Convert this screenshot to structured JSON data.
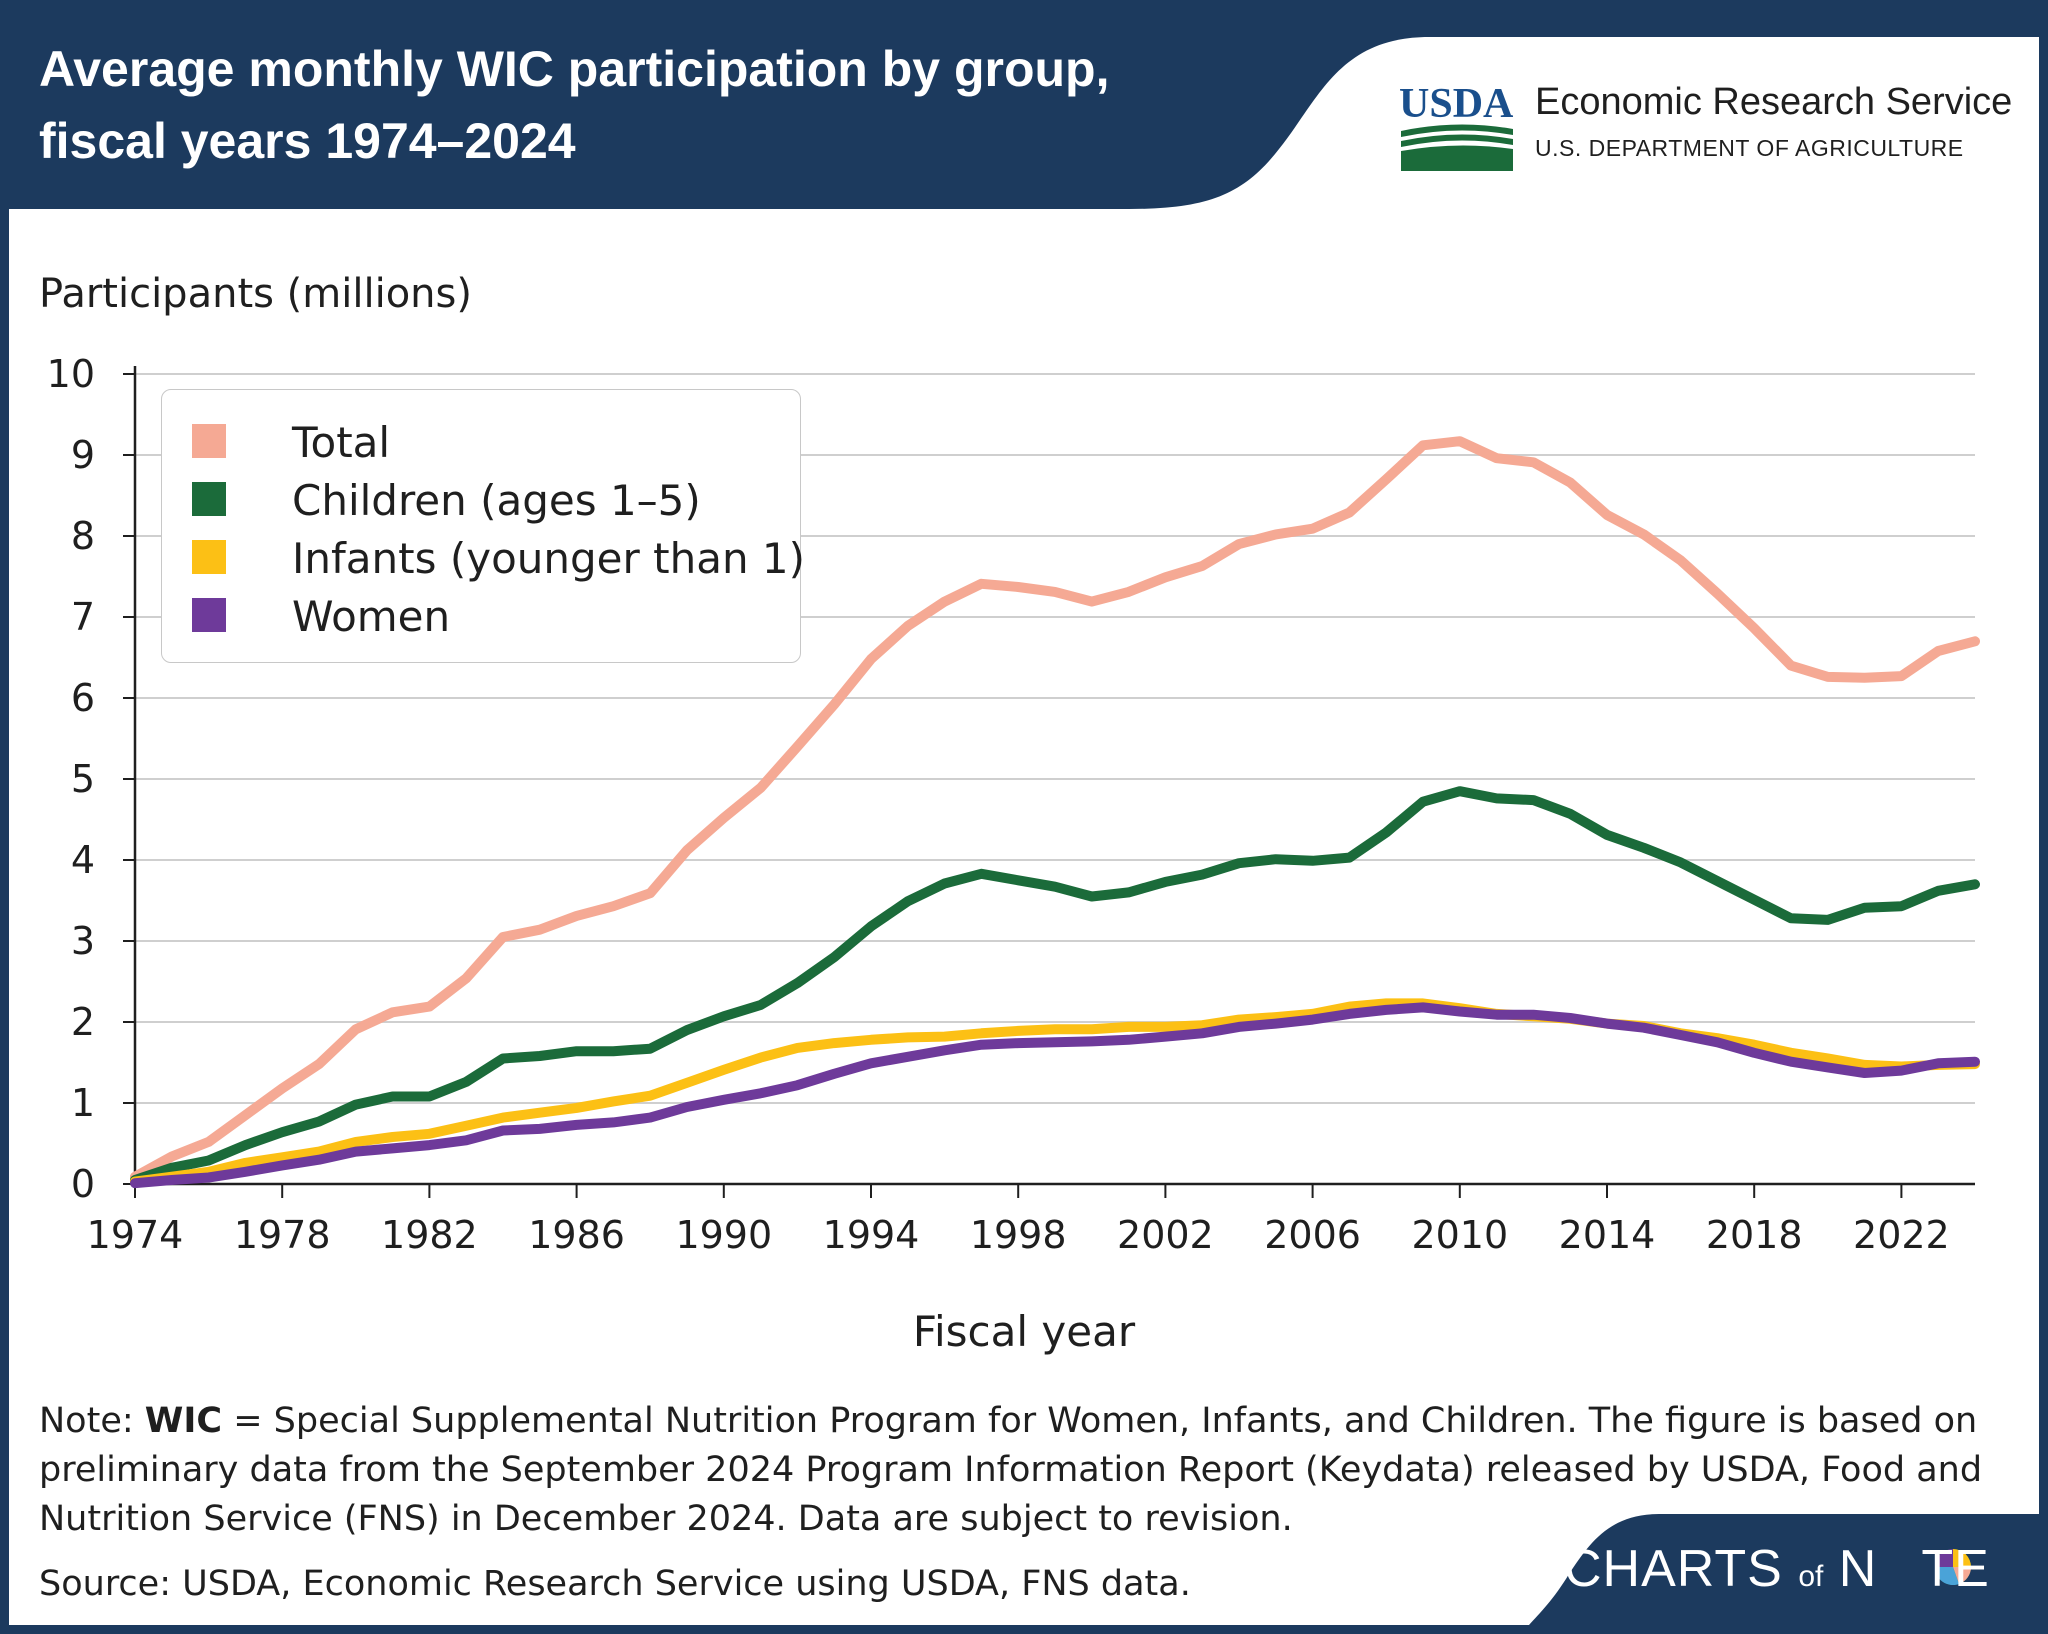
{
  "header": {
    "title_line1": "Average monthly WIC participation by group,",
    "title_line2": "fiscal years 1974–2024",
    "agency_logo": "USDA",
    "agency_name": "Economic Research Service",
    "department": "U.S. DEPARTMENT OF AGRICULTURE"
  },
  "colors": {
    "header_bg": "#1c3a5e",
    "total": "#f5a994",
    "children": "#1b6b3a",
    "infants": "#fcc015",
    "women": "#6e3a9a",
    "usda_blue": "#1a4f8c",
    "usda_green": "#1b6b3a"
  },
  "chart_data": {
    "type": "line",
    "ylabel": "Participants (millions)",
    "xlabel": "Fiscal year",
    "ylim": [
      0,
      10
    ],
    "xlim": [
      1974,
      2024
    ],
    "y_ticks": [
      "0",
      "1",
      "2",
      "3",
      "4",
      "5",
      "6",
      "7",
      "8",
      "9",
      "10"
    ],
    "x_ticks": [
      "1974",
      "1978",
      "1982",
      "1986",
      "1990",
      "1994",
      "1998",
      "2002",
      "2006",
      "2010",
      "2014",
      "2018",
      "2022"
    ],
    "grid": true,
    "legend_position": "top-left",
    "x": [
      1974,
      1975,
      1976,
      1977,
      1978,
      1979,
      1980,
      1981,
      1982,
      1983,
      1984,
      1985,
      1986,
      1987,
      1988,
      1989,
      1990,
      1991,
      1992,
      1993,
      1994,
      1995,
      1996,
      1997,
      1998,
      1999,
      2000,
      2001,
      2002,
      2003,
      2004,
      2005,
      2006,
      2007,
      2008,
      2009,
      2010,
      2011,
      2012,
      2013,
      2014,
      2015,
      2016,
      2017,
      2018,
      2019,
      2020,
      2021,
      2022,
      2023,
      2024
    ],
    "series": [
      {
        "name": "Total",
        "color": "#f5a994",
        "values": [
          0.09,
          0.34,
          0.52,
          0.85,
          1.18,
          1.48,
          1.91,
          2.12,
          2.19,
          2.54,
          3.05,
          3.14,
          3.31,
          3.43,
          3.59,
          4.12,
          4.52,
          4.89,
          5.4,
          5.92,
          6.48,
          6.89,
          7.19,
          7.41,
          7.37,
          7.31,
          7.19,
          7.31,
          7.49,
          7.63,
          7.9,
          8.02,
          8.09,
          8.29,
          8.7,
          9.12,
          9.17,
          8.96,
          8.91,
          8.66,
          8.26,
          8.02,
          7.7,
          7.29,
          6.86,
          6.4,
          6.26,
          6.25,
          6.27,
          6.58,
          6.7
        ]
      },
      {
        "name": "Children (ages 1–5)",
        "color": "#1b6b3a",
        "values": [
          0.05,
          0.2,
          0.29,
          0.48,
          0.64,
          0.77,
          0.98,
          1.08,
          1.08,
          1.26,
          1.55,
          1.58,
          1.64,
          1.64,
          1.67,
          1.9,
          2.07,
          2.21,
          2.48,
          2.8,
          3.18,
          3.49,
          3.71,
          3.83,
          3.75,
          3.67,
          3.55,
          3.6,
          3.73,
          3.82,
          3.96,
          4.01,
          3.99,
          4.03,
          4.34,
          4.72,
          4.85,
          4.76,
          4.74,
          4.57,
          4.31,
          4.15,
          3.97,
          3.74,
          3.51,
          3.28,
          3.26,
          3.41,
          3.43,
          3.62,
          3.7
        ]
      },
      {
        "name": "Infants (younger than 1)",
        "color": "#fcc015",
        "values": [
          0.03,
          0.09,
          0.15,
          0.26,
          0.33,
          0.4,
          0.52,
          0.58,
          0.62,
          0.72,
          0.82,
          0.88,
          0.94,
          1.02,
          1.09,
          1.25,
          1.41,
          1.56,
          1.68,
          1.74,
          1.78,
          1.81,
          1.82,
          1.86,
          1.89,
          1.91,
          1.91,
          1.94,
          1.94,
          1.96,
          2.03,
          2.06,
          2.1,
          2.19,
          2.23,
          2.23,
          2.17,
          2.1,
          2.07,
          2.04,
          1.98,
          1.95,
          1.86,
          1.8,
          1.72,
          1.62,
          1.55,
          1.47,
          1.45,
          1.47,
          1.48
        ]
      },
      {
        "name": "Women",
        "color": "#6e3a9a",
        "values": [
          0.01,
          0.05,
          0.08,
          0.15,
          0.23,
          0.3,
          0.4,
          0.44,
          0.48,
          0.54,
          0.66,
          0.68,
          0.73,
          0.76,
          0.82,
          0.95,
          1.04,
          1.12,
          1.22,
          1.36,
          1.49,
          1.57,
          1.65,
          1.72,
          1.74,
          1.75,
          1.76,
          1.78,
          1.82,
          1.86,
          1.94,
          1.98,
          2.03,
          2.1,
          2.15,
          2.18,
          2.13,
          2.09,
          2.09,
          2.05,
          1.98,
          1.93,
          1.84,
          1.75,
          1.62,
          1.51,
          1.44,
          1.37,
          1.4,
          1.49,
          1.51
        ]
      }
    ]
  },
  "footer": {
    "note_prefix": "Note: ",
    "note_bold": "WIC",
    "note_text": " = Special Supplemental Nutrition Program for Women, Infants, and Children. The figure is based on preliminary data from the September 2024 Program Information Report (Keydata) released by USDA, Food and Nutrition Service (FNS) in December 2024. Data are subject to revision.",
    "source": "Source: USDA, Economic Research Service using USDA, FNS data.",
    "brand_charts": "CHARTS",
    "brand_of": "of",
    "brand_note": "N",
    "brand_te": "TE"
  }
}
